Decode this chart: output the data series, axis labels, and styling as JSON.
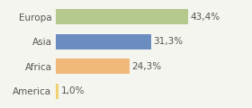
{
  "categories": [
    "Europa",
    "Asia",
    "Africa",
    "America"
  ],
  "values": [
    43.4,
    31.3,
    24.3,
    1.0
  ],
  "labels": [
    "43,4%",
    "31,3%",
    "24,3%",
    "1,0%"
  ],
  "colors": [
    "#b5c98e",
    "#6b8cbf",
    "#f0b97a",
    "#f0d070"
  ],
  "background_color": "#f5f5f0",
  "xlim": [
    0,
    52
  ],
  "bar_height": 0.62,
  "label_fontsize": 7.5,
  "tick_fontsize": 7.5,
  "text_color": "#555555"
}
